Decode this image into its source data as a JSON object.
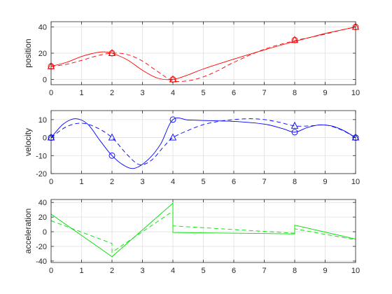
{
  "chart_data": [
    {
      "type": "line",
      "ylabel": "position",
      "xlim": [
        0,
        10
      ],
      "ylim": [
        -4,
        44
      ],
      "xticks": [
        0,
        1,
        2,
        3,
        4,
        5,
        6,
        7,
        8,
        9,
        10
      ],
      "yticks": [
        0,
        20,
        40
      ],
      "grid": true,
      "color": "#ff0000",
      "series": [
        {
          "style": "solid",
          "x": [
            0,
            0.5,
            1,
            1.5,
            1.75,
            2,
            2.5,
            3,
            3.5,
            4,
            4.5,
            5,
            6,
            7,
            8,
            8.5,
            9,
            9.5,
            10
          ],
          "y": [
            10,
            13,
            17.5,
            20.5,
            21,
            20,
            15,
            7,
            1,
            0,
            3.5,
            8,
            15.5,
            22.5,
            29,
            32,
            35,
            37.5,
            40
          ]
        },
        {
          "style": "dashed",
          "x": [
            0,
            0.5,
            1,
            1.5,
            2,
            2.5,
            3,
            3.5,
            4,
            4.5,
            5,
            5.5,
            6,
            7,
            8,
            8.5,
            9,
            9.5,
            10
          ],
          "y": [
            10,
            11.5,
            14.5,
            18,
            20,
            19,
            14,
            6,
            -1,
            -1,
            2,
            7,
            13,
            23,
            29.5,
            32,
            34.5,
            37.5,
            40
          ]
        }
      ],
      "markers": {
        "circles": {
          "x": [
            0,
            2,
            4,
            8,
            10
          ],
          "y": [
            10,
            20,
            0,
            30,
            40
          ]
        },
        "triangles": {
          "x": [
            0,
            2,
            4,
            8,
            10
          ],
          "y": [
            10,
            20,
            0,
            30,
            40
          ]
        }
      }
    },
    {
      "type": "line",
      "ylabel": "velocity",
      "xlim": [
        0,
        10
      ],
      "ylim": [
        -20,
        15
      ],
      "xticks": [
        0,
        1,
        2,
        3,
        4,
        5,
        6,
        7,
        8,
        9,
        10
      ],
      "yticks": [
        -20,
        -10,
        0,
        10
      ],
      "grid": true,
      "color": "#0000ff",
      "series": [
        {
          "style": "solid",
          "x": [
            0,
            0.4,
            0.8,
            1.2,
            1.6,
            2,
            2.4,
            2.75,
            3.2,
            3.6,
            4,
            4.5,
            5,
            6,
            7,
            7.6,
            8,
            8.4,
            8.8,
            9.2,
            9.6,
            10
          ],
          "y": [
            0,
            7.5,
            10.5,
            7.5,
            -1.5,
            -10,
            -15.5,
            -17,
            -12,
            -3.5,
            10,
            9.8,
            9.5,
            9,
            7.5,
            5,
            3,
            5.5,
            7,
            6.5,
            4,
            0
          ]
        },
        {
          "style": "dashed",
          "x": [
            0,
            0.5,
            1,
            1.5,
            2,
            2.5,
            2.9,
            3.3,
            3.7,
            4,
            4.5,
            5,
            5.5,
            6,
            6.5,
            7,
            7.5,
            8,
            8.5,
            9,
            9.5,
            10
          ],
          "y": [
            0,
            6,
            8,
            5.5,
            0,
            -9.5,
            -15,
            -12.5,
            -5,
            0,
            4,
            7.2,
            9,
            10,
            10.5,
            10,
            8.5,
            6.5,
            6.5,
            7,
            4.5,
            0
          ]
        }
      ],
      "markers": {
        "circles": {
          "x": [
            0,
            2,
            4,
            8,
            10
          ],
          "y": [
            0,
            -10,
            10,
            3,
            0
          ]
        },
        "triangles": {
          "x": [
            0,
            2,
            4,
            8,
            10
          ],
          "y": [
            0,
            0,
            0,
            6.5,
            0
          ]
        }
      }
    },
    {
      "type": "line",
      "ylabel": "acceleration",
      "xlim": [
        0,
        10
      ],
      "ylim": [
        -42,
        44
      ],
      "xticks": [
        0,
        1,
        2,
        3,
        4,
        5,
        6,
        7,
        8,
        9,
        10
      ],
      "yticks": [
        -40,
        -20,
        0,
        20,
        40
      ],
      "grid": true,
      "color": "#00e000",
      "series": [
        {
          "style": "solid",
          "x": [
            0,
            2,
            2,
            4,
            4,
            8,
            8,
            10
          ],
          "y": [
            24,
            -34,
            -34,
            39,
            -1,
            -3,
            9,
            -10
          ]
        },
        {
          "style": "dashed",
          "x": [
            0,
            2,
            2,
            4,
            4,
            8,
            8,
            10
          ],
          "y": [
            15,
            -16,
            -28,
            28,
            8,
            -2,
            4,
            -11
          ]
        }
      ]
    }
  ]
}
